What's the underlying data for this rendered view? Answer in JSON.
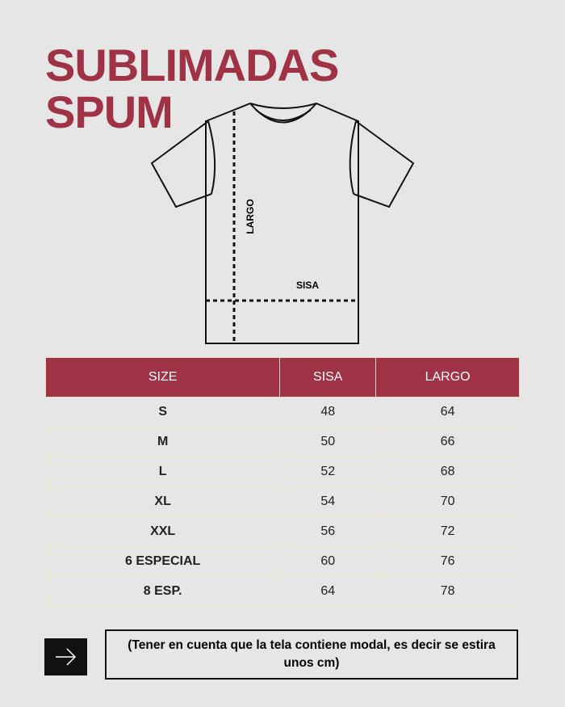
{
  "header": {
    "title_line1": "SUBLIMADAS",
    "title_line2": "SPUM"
  },
  "diagram": {
    "largo_label": "LARGO",
    "sisa_label": "SISA"
  },
  "table": {
    "headers": [
      "SIZE",
      "SISA",
      "LARGO"
    ],
    "rows": [
      [
        "S",
        "48",
        "64"
      ],
      [
        "M",
        "50",
        "66"
      ],
      [
        "L",
        "52",
        "68"
      ],
      [
        "XL",
        "54",
        "70"
      ],
      [
        "XXL",
        "56",
        "72"
      ],
      [
        "6 ESPECIAL",
        "60",
        "76"
      ],
      [
        "8 ESP.",
        "64",
        "78"
      ]
    ]
  },
  "note": "(Tener en cuenta que la tela contiene modal, es decir se estira unos cm)"
}
